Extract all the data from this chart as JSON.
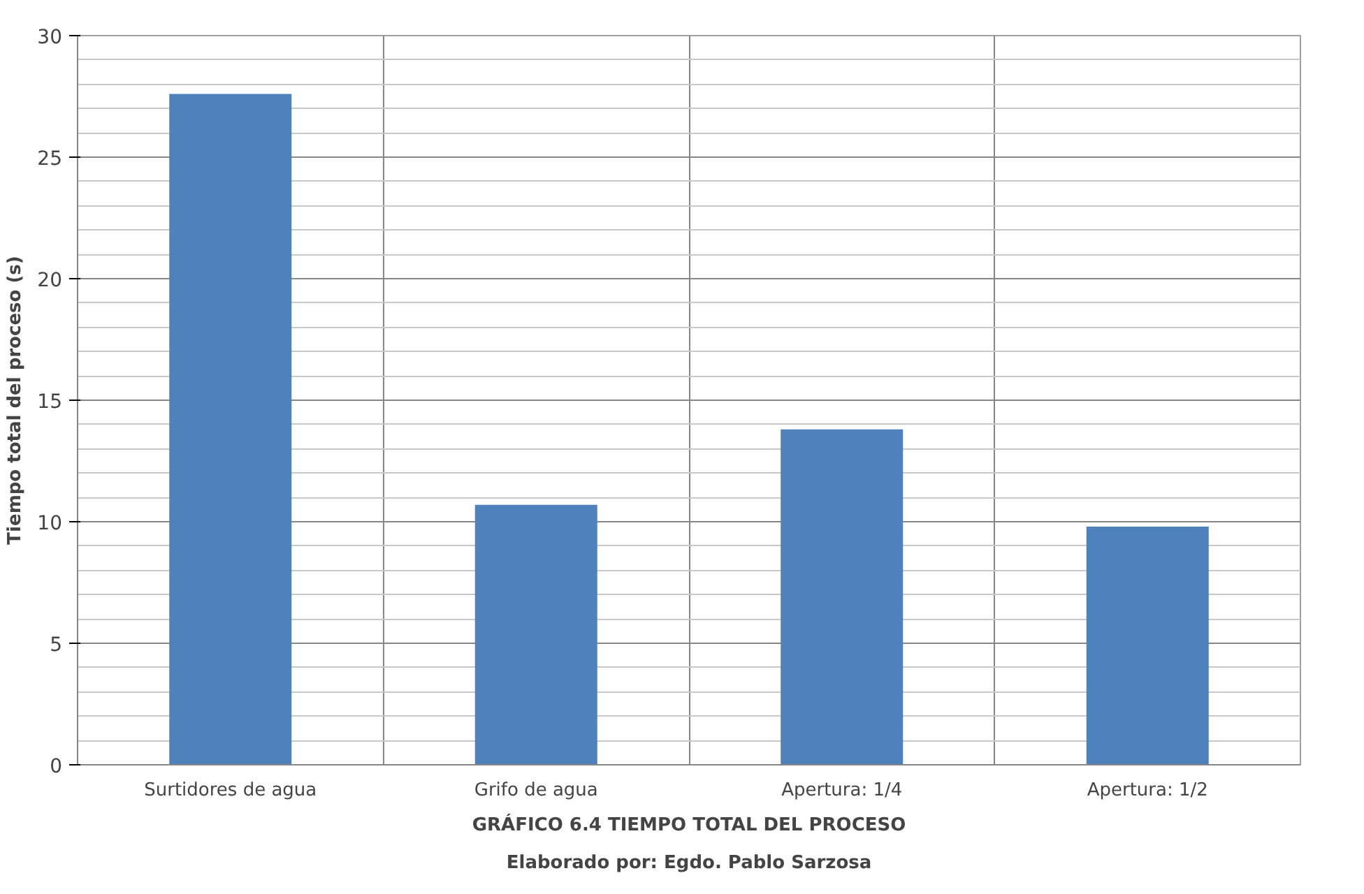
{
  "chart_data": {
    "type": "bar",
    "title": "GRÁFICO 6.4 TIEMPO TOTAL DEL PROCESO",
    "annotations": [
      "Elaborado por: Egdo. Pablo Sarzosa"
    ],
    "ylabel": "Tiempo total del proceso (s)",
    "categories": [
      "Surtidores de agua",
      "Grifo de agua",
      "Apertura: 1/4",
      "Apertura: 1/2"
    ],
    "values": [
      27.6,
      10.7,
      13.8,
      9.8
    ],
    "color": "#4f81bd",
    "ylim": [
      0,
      30
    ],
    "yticks": [
      0,
      5,
      10,
      15,
      20,
      25,
      30
    ],
    "grid": true
  }
}
